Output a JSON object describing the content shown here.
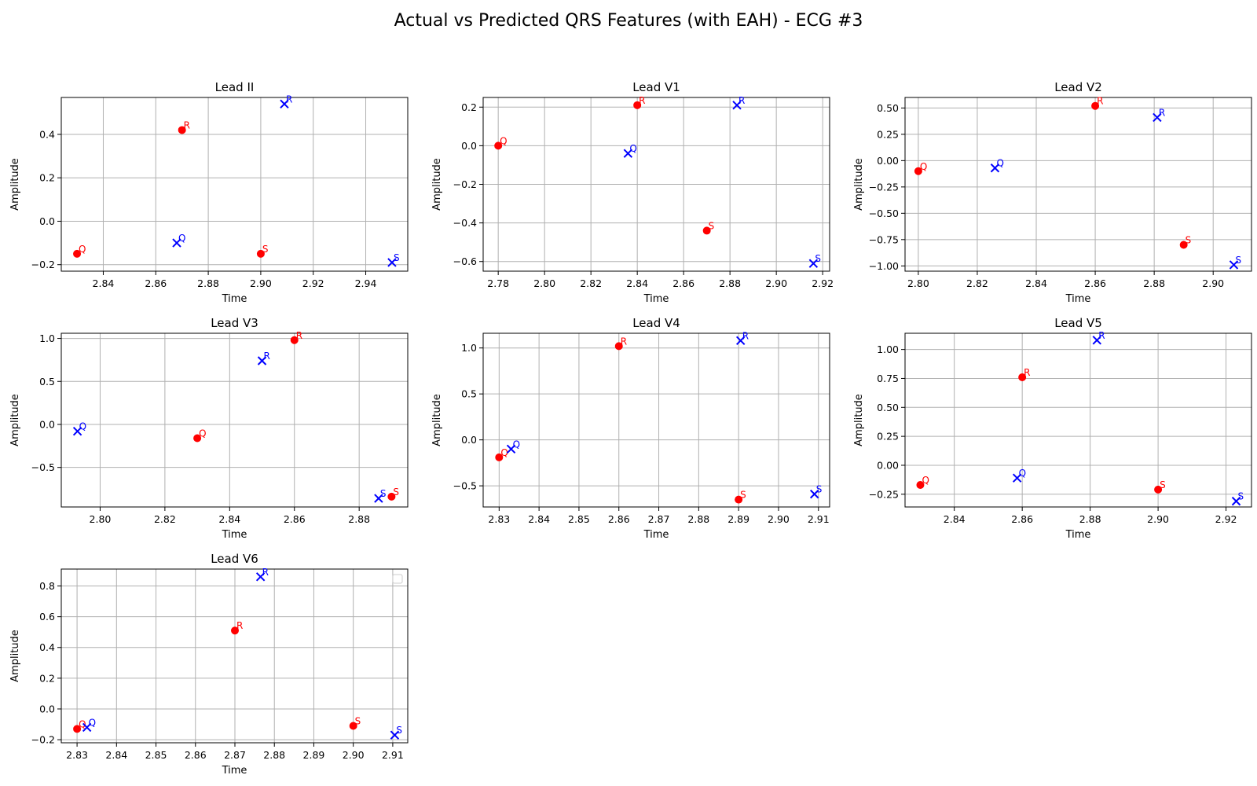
{
  "figure": {
    "title": "Actual vs Predicted QRS Features (with EAH) - ECG #3"
  },
  "colors": {
    "actual": "#ff0000",
    "predicted": "#0000ff",
    "grid": "#b0b0b0",
    "axes": "#000000"
  },
  "chart_data": [
    {
      "type": "scatter",
      "title": "Lead II",
      "xlabel": "Time",
      "ylabel": "Amplitude",
      "xlim": [
        2.824,
        2.956
      ],
      "ylim": [
        -0.23,
        0.57
      ],
      "xticks": [
        2.84,
        2.86,
        2.88,
        2.9,
        2.92,
        2.94
      ],
      "xtick_labels": [
        "2.84",
        "2.86",
        "2.88",
        "2.90",
        "2.92",
        "2.94"
      ],
      "yticks": [
        -0.2,
        0.0,
        0.2,
        0.4
      ],
      "ytick_labels": [
        "−0.2",
        "0.0",
        "0.2",
        "0.4"
      ],
      "grid": true,
      "series": [
        {
          "marker": "circle",
          "points": [
            {
              "x": 2.83,
              "y": -0.15,
              "label": "Q"
            },
            {
              "x": 2.87,
              "y": 0.42,
              "label": "R"
            },
            {
              "x": 2.9,
              "y": -0.15,
              "label": "S"
            }
          ]
        },
        {
          "marker": "x",
          "points": [
            {
              "x": 2.868,
              "y": -0.1,
              "label": "Q"
            },
            {
              "x": 2.909,
              "y": 0.54,
              "label": "R"
            },
            {
              "x": 2.95,
              "y": -0.19,
              "label": "S"
            }
          ]
        }
      ]
    },
    {
      "type": "scatter",
      "title": "Lead V1",
      "xlabel": "Time",
      "ylabel": "Amplitude",
      "xlim": [
        2.7735,
        2.923
      ],
      "ylim": [
        -0.65,
        0.25
      ],
      "xticks": [
        2.78,
        2.8,
        2.82,
        2.84,
        2.86,
        2.88,
        2.9,
        2.92
      ],
      "xtick_labels": [
        "2.78",
        "2.80",
        "2.82",
        "2.84",
        "2.86",
        "2.88",
        "2.90",
        "2.92"
      ],
      "yticks": [
        -0.6,
        -0.4,
        -0.2,
        0.0,
        0.2
      ],
      "ytick_labels": [
        "−0.6",
        "−0.4",
        "−0.2",
        "0.0",
        "0.2"
      ],
      "grid": true,
      "series": [
        {
          "marker": "circle",
          "points": [
            {
              "x": 2.78,
              "y": 0.0,
              "label": "Q"
            },
            {
              "x": 2.84,
              "y": 0.21,
              "label": "R"
            },
            {
              "x": 2.87,
              "y": -0.44,
              "label": "S"
            }
          ]
        },
        {
          "marker": "x",
          "points": [
            {
              "x": 2.836,
              "y": -0.04,
              "label": "Q"
            },
            {
              "x": 2.883,
              "y": 0.21,
              "label": "R"
            },
            {
              "x": 2.916,
              "y": -0.61,
              "label": "S"
            }
          ]
        }
      ]
    },
    {
      "type": "scatter",
      "title": "Lead V2",
      "xlabel": "Time",
      "ylabel": "Amplitude",
      "xlim": [
        2.7955,
        2.913
      ],
      "ylim": [
        -1.05,
        0.6
      ],
      "xticks": [
        2.8,
        2.82,
        2.84,
        2.86,
        2.88,
        2.9
      ],
      "xtick_labels": [
        "2.80",
        "2.82",
        "2.84",
        "2.86",
        "2.88",
        "2.90"
      ],
      "yticks": [
        -1.0,
        -0.75,
        -0.5,
        -0.25,
        0.0,
        0.25,
        0.5
      ],
      "ytick_labels": [
        "−1.00",
        "−0.75",
        "−0.50",
        "−0.25",
        "0.00",
        "0.25",
        "0.50"
      ],
      "grid": true,
      "series": [
        {
          "marker": "circle",
          "points": [
            {
              "x": 2.8,
              "y": -0.1,
              "label": "Q"
            },
            {
              "x": 2.86,
              "y": 0.52,
              "label": "R"
            },
            {
              "x": 2.89,
              "y": -0.8,
              "label": "S"
            }
          ]
        },
        {
          "marker": "x",
          "points": [
            {
              "x": 2.826,
              "y": -0.07,
              "label": "Q"
            },
            {
              "x": 2.881,
              "y": 0.41,
              "label": "R"
            },
            {
              "x": 2.907,
              "y": -0.99,
              "label": "S"
            }
          ]
        }
      ]
    },
    {
      "type": "scatter",
      "title": "Lead V3",
      "xlabel": "Time",
      "ylabel": "Amplitude",
      "xlim": [
        2.788,
        2.895
      ],
      "ylim": [
        -0.96,
        1.06
      ],
      "xticks": [
        2.8,
        2.82,
        2.84,
        2.86,
        2.88
      ],
      "xtick_labels": [
        "2.80",
        "2.82",
        "2.84",
        "2.86",
        "2.88"
      ],
      "yticks": [
        -0.5,
        0.0,
        0.5,
        1.0
      ],
      "ytick_labels": [
        "−0.5",
        "0.0",
        "0.5",
        "1.0"
      ],
      "grid": true,
      "series": [
        {
          "marker": "circle",
          "points": [
            {
              "x": 2.83,
              "y": -0.16,
              "label": "Q"
            },
            {
              "x": 2.86,
              "y": 0.98,
              "label": "R"
            },
            {
              "x": 2.89,
              "y": -0.84,
              "label": "S"
            }
          ]
        },
        {
          "marker": "x",
          "points": [
            {
              "x": 2.793,
              "y": -0.08,
              "label": "Q"
            },
            {
              "x": 2.85,
              "y": 0.74,
              "label": "R"
            },
            {
              "x": 2.886,
              "y": -0.86,
              "label": "S"
            }
          ]
        }
      ]
    },
    {
      "type": "scatter",
      "title": "Lead V4",
      "xlabel": "Time",
      "ylabel": "Amplitude",
      "xlim": [
        2.826,
        2.9128
      ],
      "ylim": [
        -0.73,
        1.16
      ],
      "xticks": [
        2.83,
        2.84,
        2.85,
        2.86,
        2.87,
        2.88,
        2.89,
        2.9,
        2.91
      ],
      "xtick_labels": [
        "2.83",
        "2.84",
        "2.85",
        "2.86",
        "2.87",
        "2.88",
        "2.89",
        "2.90",
        "2.91"
      ],
      "yticks": [
        -0.5,
        0.0,
        0.5,
        1.0
      ],
      "ytick_labels": [
        "−0.5",
        "0.0",
        "0.5",
        "1.0"
      ],
      "grid": true,
      "series": [
        {
          "marker": "circle",
          "points": [
            {
              "x": 2.83,
              "y": -0.19,
              "label": "Q"
            },
            {
              "x": 2.86,
              "y": 1.02,
              "label": "R"
            },
            {
              "x": 2.89,
              "y": -0.65,
              "label": "S"
            }
          ]
        },
        {
          "marker": "x",
          "points": [
            {
              "x": 2.833,
              "y": -0.1,
              "label": "Q"
            },
            {
              "x": 2.8905,
              "y": 1.08,
              "label": "R"
            },
            {
              "x": 2.909,
              "y": -0.59,
              "label": "S"
            }
          ]
        }
      ]
    },
    {
      "type": "scatter",
      "title": "Lead V5",
      "xlabel": "Time",
      "ylabel": "Amplitude",
      "xlim": [
        2.8255,
        2.9275
      ],
      "ylim": [
        -0.36,
        1.14
      ],
      "xticks": [
        2.84,
        2.86,
        2.88,
        2.9,
        2.92
      ],
      "xtick_labels": [
        "2.84",
        "2.86",
        "2.88",
        "2.90",
        "2.92"
      ],
      "yticks": [
        -0.25,
        0.0,
        0.25,
        0.5,
        0.75,
        1.0
      ],
      "ytick_labels": [
        "−0.25",
        "0.00",
        "0.25",
        "0.50",
        "0.75",
        "1.00"
      ],
      "grid": true,
      "series": [
        {
          "marker": "circle",
          "points": [
            {
              "x": 2.83,
              "y": -0.17,
              "label": "Q"
            },
            {
              "x": 2.86,
              "y": 0.76,
              "label": "R"
            },
            {
              "x": 2.9,
              "y": -0.21,
              "label": "S"
            }
          ]
        },
        {
          "marker": "x",
          "points": [
            {
              "x": 2.8585,
              "y": -0.11,
              "label": "Q"
            },
            {
              "x": 2.882,
              "y": 1.08,
              "label": "R"
            },
            {
              "x": 2.923,
              "y": -0.31,
              "label": "S"
            }
          ]
        }
      ]
    },
    {
      "type": "scatter",
      "title": "Lead V6",
      "xlabel": "Time",
      "ylabel": "Amplitude",
      "xlim": [
        2.826,
        2.9138
      ],
      "ylim": [
        -0.22,
        0.91
      ],
      "xticks": [
        2.83,
        2.84,
        2.85,
        2.86,
        2.87,
        2.88,
        2.89,
        2.9,
        2.91
      ],
      "xtick_labels": [
        "2.83",
        "2.84",
        "2.85",
        "2.86",
        "2.87",
        "2.88",
        "2.89",
        "2.90",
        "2.91"
      ],
      "yticks": [
        -0.2,
        0.0,
        0.2,
        0.4,
        0.6,
        0.8
      ],
      "ytick_labels": [
        "−0.2",
        "0.0",
        "0.2",
        "0.4",
        "0.6",
        "0.8"
      ],
      "grid": true,
      "legend": "top-right",
      "series": [
        {
          "marker": "circle",
          "points": [
            {
              "x": 2.83,
              "y": -0.13,
              "label": "Q"
            },
            {
              "x": 2.87,
              "y": 0.51,
              "label": "R"
            },
            {
              "x": 2.9,
              "y": -0.11,
              "label": "S"
            }
          ]
        },
        {
          "marker": "x",
          "points": [
            {
              "x": 2.8325,
              "y": -0.12,
              "label": "Q"
            },
            {
              "x": 2.8765,
              "y": 0.86,
              "label": "R"
            },
            {
              "x": 2.9105,
              "y": -0.17,
              "label": "S"
            }
          ]
        }
      ]
    }
  ]
}
